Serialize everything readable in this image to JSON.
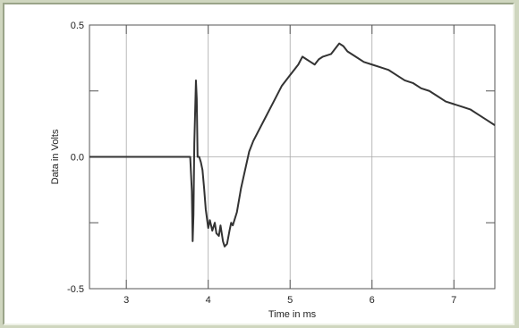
{
  "chart_data": {
    "type": "line",
    "title": "",
    "xlabel": "Time in ms",
    "ylabel": "Data in Volts",
    "xlim": [
      2.55,
      7.5
    ],
    "ylim": [
      -0.5,
      0.5
    ],
    "grid": true,
    "x_ticks": [
      3,
      4,
      5,
      6,
      7
    ],
    "x_tick_labels": [
      "3",
      "4",
      "5",
      "6",
      "7"
    ],
    "y_ticks": [
      0.5,
      0.0,
      -0.5
    ],
    "y_tick_labels": [
      "0.5",
      "0.0",
      "-0.5"
    ],
    "series": [
      {
        "color": "#333333",
        "x": [
          2.55,
          3.0,
          3.5,
          3.78,
          3.8,
          3.81,
          3.82,
          3.83,
          3.85,
          3.86,
          3.87,
          3.89,
          3.91,
          3.93,
          3.95,
          3.97,
          4.0,
          4.02,
          4.05,
          4.08,
          4.1,
          4.13,
          4.15,
          4.18,
          4.2,
          4.23,
          4.26,
          4.28,
          4.3,
          4.35,
          4.4,
          4.45,
          4.5,
          4.55,
          4.6,
          4.7,
          4.8,
          4.9,
          5.0,
          5.1,
          5.15,
          5.2,
          5.25,
          5.3,
          5.35,
          5.4,
          5.5,
          5.55,
          5.6,
          5.65,
          5.7,
          5.8,
          5.9,
          6.0,
          6.1,
          6.2,
          6.3,
          6.4,
          6.5,
          6.6,
          6.7,
          6.8,
          6.9,
          7.0,
          7.1,
          7.2,
          7.3,
          7.4,
          7.5
        ],
        "y": [
          0.0,
          0.0,
          0.0,
          0.0,
          -0.13,
          -0.32,
          -0.22,
          0.05,
          0.29,
          0.22,
          0.0,
          0.0,
          -0.02,
          -0.05,
          -0.12,
          -0.2,
          -0.27,
          -0.24,
          -0.28,
          -0.25,
          -0.29,
          -0.3,
          -0.26,
          -0.32,
          -0.34,
          -0.33,
          -0.28,
          -0.25,
          -0.26,
          -0.21,
          -0.12,
          -0.05,
          0.02,
          0.06,
          0.09,
          0.15,
          0.21,
          0.27,
          0.31,
          0.35,
          0.38,
          0.37,
          0.36,
          0.35,
          0.37,
          0.38,
          0.39,
          0.41,
          0.43,
          0.42,
          0.4,
          0.38,
          0.36,
          0.35,
          0.34,
          0.33,
          0.31,
          0.29,
          0.28,
          0.26,
          0.25,
          0.23,
          0.21,
          0.2,
          0.19,
          0.18,
          0.16,
          0.14,
          0.12
        ]
      }
    ]
  }
}
